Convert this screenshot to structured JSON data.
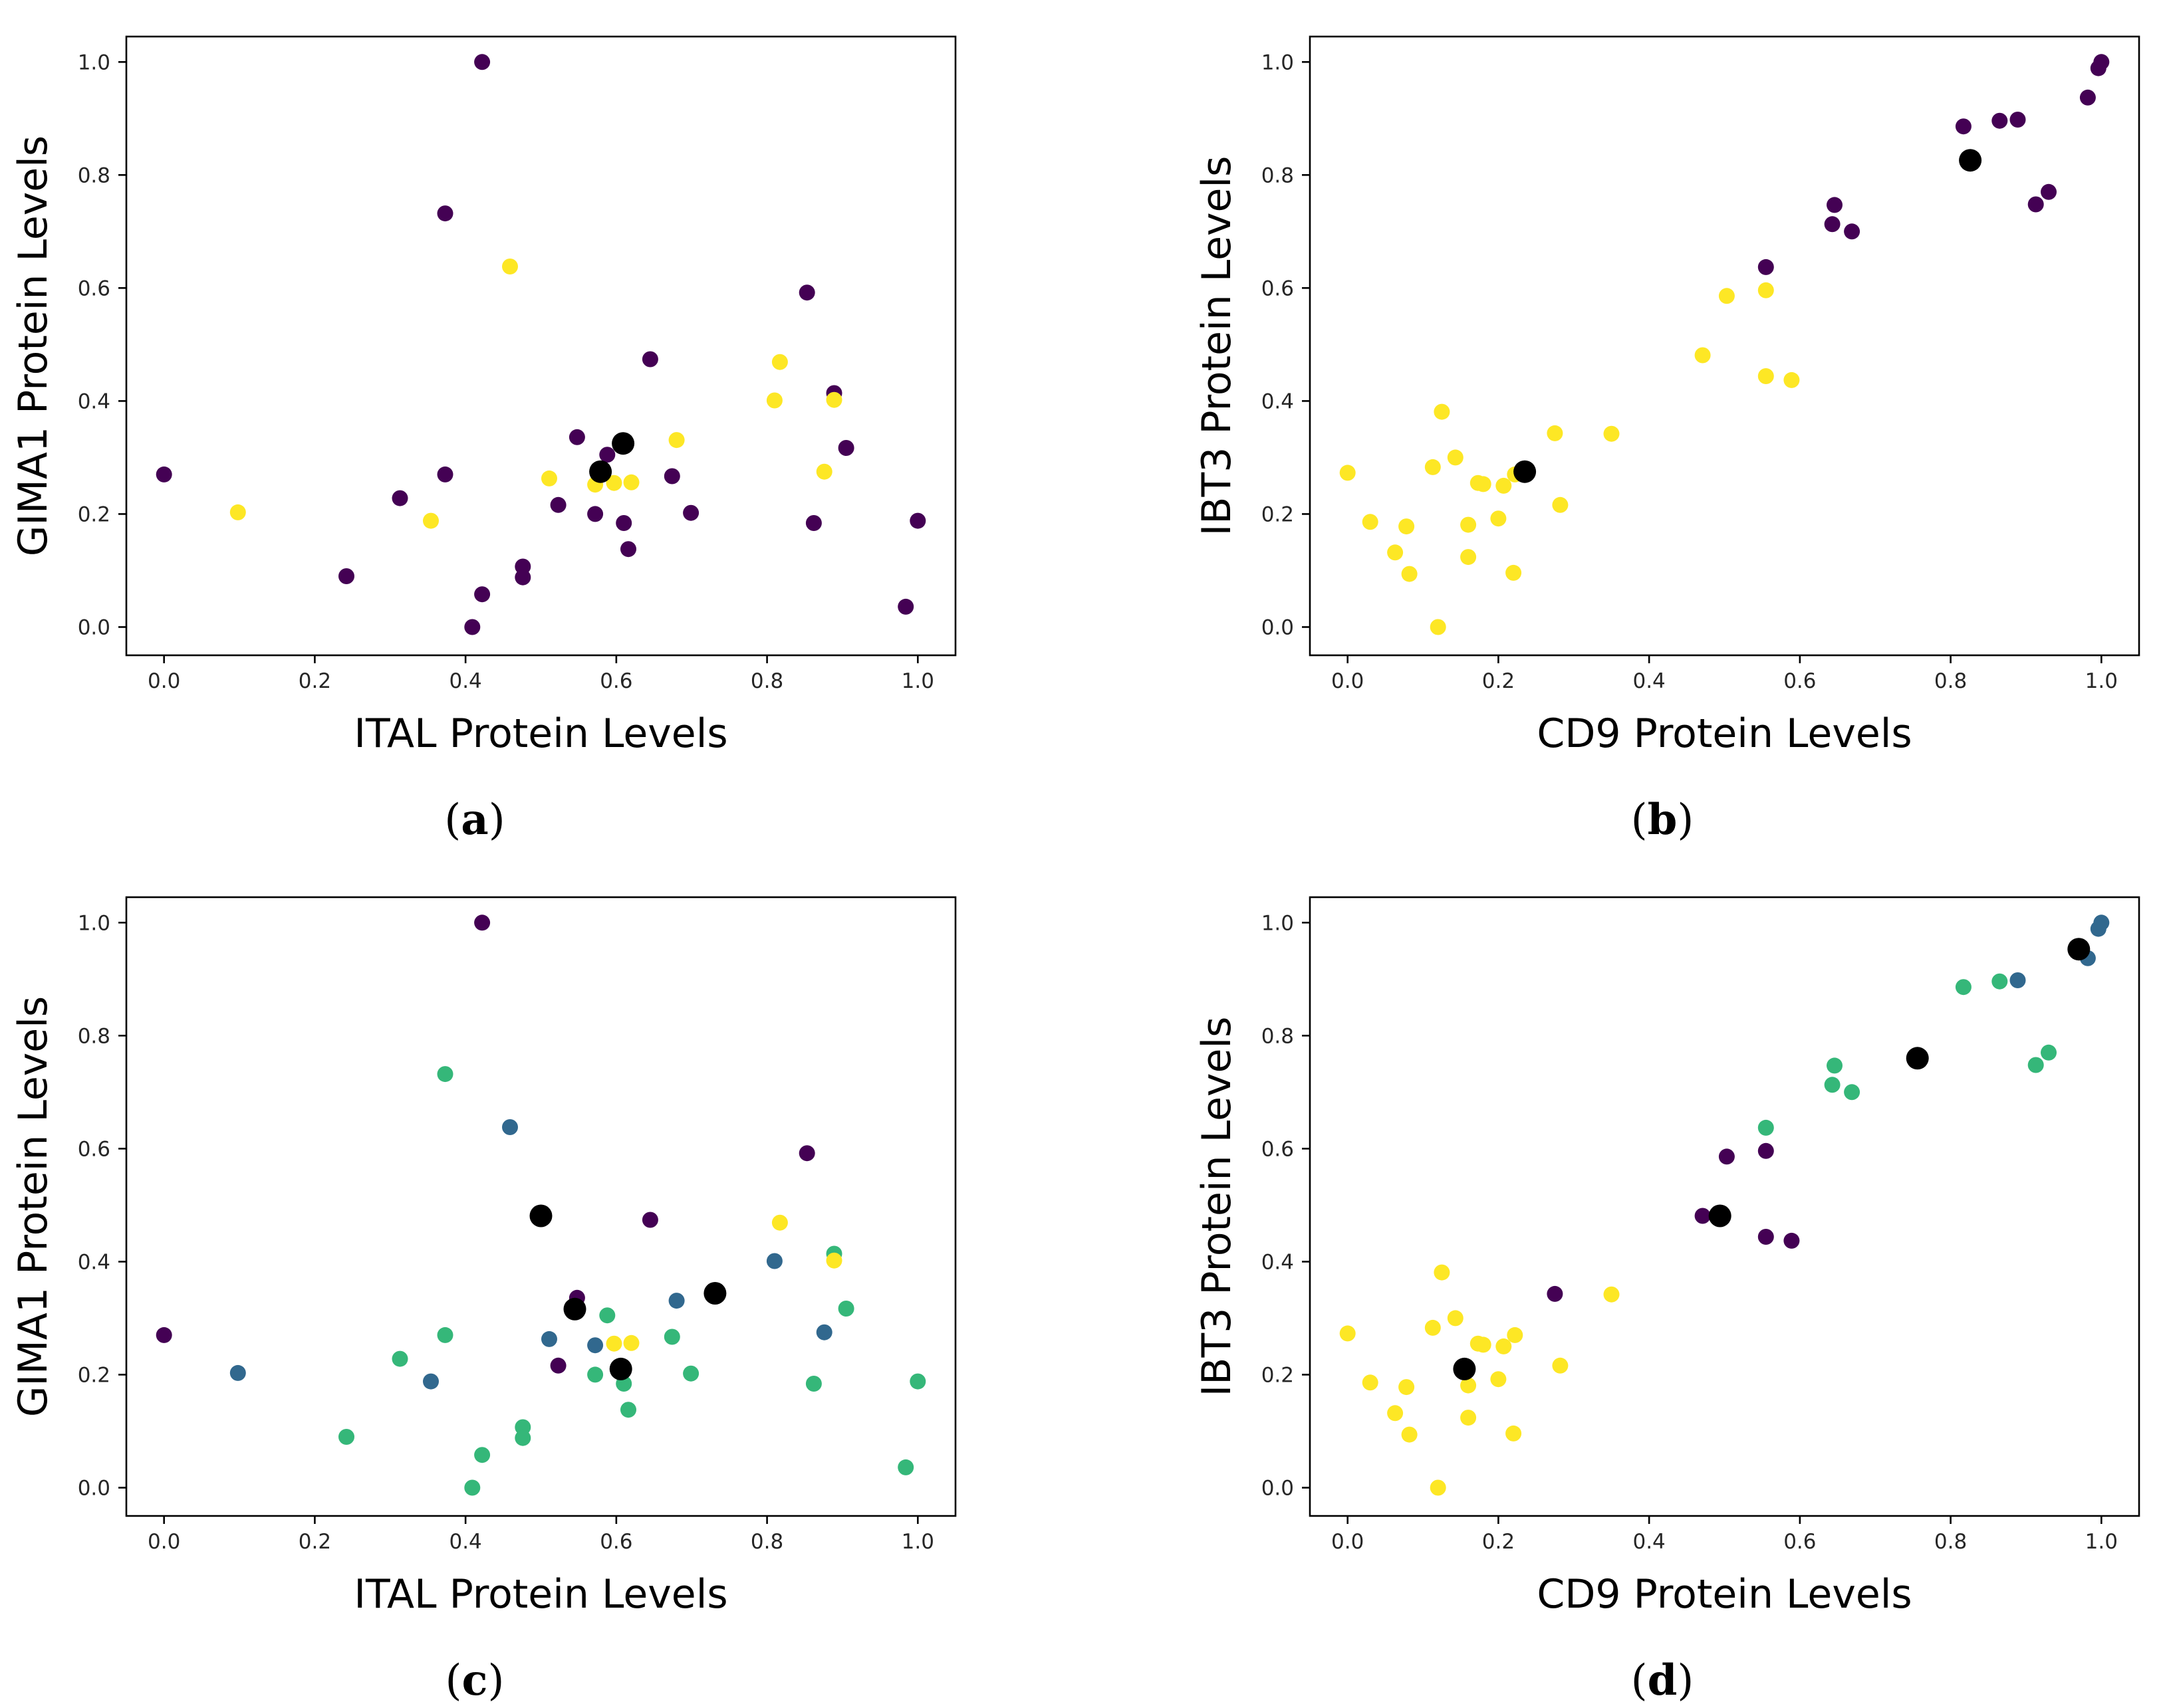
{
  "colors": {
    "purple": "#440154",
    "blue": "#31688e",
    "green": "#35b779",
    "yellow": "#fde725",
    "centroid": "#000000"
  },
  "chart_data": [
    {
      "id": "a",
      "type": "scatter",
      "caption_letter": "a",
      "xlabel": "ITAL Protein Levels",
      "ylabel": "GIMA1 Protein Levels",
      "xlim": [
        -0.05,
        1.05
      ],
      "ylim": [
        -0.05,
        1.045
      ],
      "xticks": [
        "0.0",
        "0.2",
        "0.4",
        "0.6",
        "0.8",
        "1.0"
      ],
      "yticks": [
        "0.0",
        "0.2",
        "0.4",
        "0.6",
        "0.8",
        "1.0"
      ],
      "legend": "none",
      "grid": false,
      "points": [
        {
          "x": 0.0,
          "y": 0.27,
          "c": "purple"
        },
        {
          "x": 0.242,
          "y": 0.09,
          "c": "purple"
        },
        {
          "x": 0.313,
          "y": 0.228,
          "c": "purple"
        },
        {
          "x": 0.373,
          "y": 0.732,
          "c": "purple"
        },
        {
          "x": 0.373,
          "y": 0.27,
          "c": "purple"
        },
        {
          "x": 0.409,
          "y": 0.0,
          "c": "purple"
        },
        {
          "x": 0.422,
          "y": 1.0,
          "c": "purple"
        },
        {
          "x": 0.422,
          "y": 0.058,
          "c": "purple"
        },
        {
          "x": 0.476,
          "y": 0.107,
          "c": "purple"
        },
        {
          "x": 0.476,
          "y": 0.088,
          "c": "purple"
        },
        {
          "x": 0.523,
          "y": 0.216,
          "c": "purple"
        },
        {
          "x": 0.548,
          "y": 0.336,
          "c": "purple"
        },
        {
          "x": 0.572,
          "y": 0.2,
          "c": "purple"
        },
        {
          "x": 0.588,
          "y": 0.305,
          "c": "purple"
        },
        {
          "x": 0.61,
          "y": 0.184,
          "c": "purple"
        },
        {
          "x": 0.616,
          "y": 0.138,
          "c": "purple"
        },
        {
          "x": 0.645,
          "y": 0.474,
          "c": "purple"
        },
        {
          "x": 0.674,
          "y": 0.267,
          "c": "purple"
        },
        {
          "x": 0.699,
          "y": 0.202,
          "c": "purple"
        },
        {
          "x": 0.853,
          "y": 0.592,
          "c": "purple"
        },
        {
          "x": 0.862,
          "y": 0.184,
          "c": "purple"
        },
        {
          "x": 0.889,
          "y": 0.414,
          "c": "purple"
        },
        {
          "x": 0.905,
          "y": 0.317,
          "c": "purple"
        },
        {
          "x": 0.984,
          "y": 0.036,
          "c": "purple"
        },
        {
          "x": 1.0,
          "y": 0.188,
          "c": "purple"
        },
        {
          "x": 0.098,
          "y": 0.203,
          "c": "yellow"
        },
        {
          "x": 0.354,
          "y": 0.188,
          "c": "yellow"
        },
        {
          "x": 0.459,
          "y": 0.638,
          "c": "yellow"
        },
        {
          "x": 0.511,
          "y": 0.263,
          "c": "yellow"
        },
        {
          "x": 0.572,
          "y": 0.252,
          "c": "yellow"
        },
        {
          "x": 0.597,
          "y": 0.255,
          "c": "yellow"
        },
        {
          "x": 0.62,
          "y": 0.256,
          "c": "yellow"
        },
        {
          "x": 0.68,
          "y": 0.331,
          "c": "yellow"
        },
        {
          "x": 0.81,
          "y": 0.401,
          "c": "yellow"
        },
        {
          "x": 0.817,
          "y": 0.469,
          "c": "yellow"
        },
        {
          "x": 0.876,
          "y": 0.275,
          "c": "yellow"
        },
        {
          "x": 0.889,
          "y": 0.402,
          "c": "yellow"
        }
      ],
      "centroids": [
        {
          "x": 0.579,
          "y": 0.275
        },
        {
          "x": 0.609,
          "y": 0.325
        }
      ]
    },
    {
      "id": "b",
      "type": "scatter",
      "caption_letter": "b",
      "xlabel": "CD9 Protein Levels",
      "ylabel": "IBT3 Protein Levels",
      "xlim": [
        -0.05,
        1.05
      ],
      "ylim": [
        -0.05,
        1.045
      ],
      "xticks": [
        "0.0",
        "0.2",
        "0.4",
        "0.6",
        "0.8",
        "1.0"
      ],
      "yticks": [
        "0.0",
        "0.2",
        "0.4",
        "0.6",
        "0.8",
        "1.0"
      ],
      "legend": "none",
      "grid": false,
      "points": [
        {
          "x": 0.0,
          "y": 0.273,
          "c": "yellow"
        },
        {
          "x": 0.03,
          "y": 0.186,
          "c": "yellow"
        },
        {
          "x": 0.063,
          "y": 0.132,
          "c": "yellow"
        },
        {
          "x": 0.078,
          "y": 0.178,
          "c": "yellow"
        },
        {
          "x": 0.082,
          "y": 0.094,
          "c": "yellow"
        },
        {
          "x": 0.113,
          "y": 0.283,
          "c": "yellow"
        },
        {
          "x": 0.12,
          "y": 0.0,
          "c": "yellow"
        },
        {
          "x": 0.125,
          "y": 0.381,
          "c": "yellow"
        },
        {
          "x": 0.143,
          "y": 0.3,
          "c": "yellow"
        },
        {
          "x": 0.16,
          "y": 0.124,
          "c": "yellow"
        },
        {
          "x": 0.16,
          "y": 0.181,
          "c": "yellow"
        },
        {
          "x": 0.173,
          "y": 0.255,
          "c": "yellow"
        },
        {
          "x": 0.18,
          "y": 0.253,
          "c": "yellow"
        },
        {
          "x": 0.2,
          "y": 0.192,
          "c": "yellow"
        },
        {
          "x": 0.207,
          "y": 0.25,
          "c": "yellow"
        },
        {
          "x": 0.22,
          "y": 0.096,
          "c": "yellow"
        },
        {
          "x": 0.222,
          "y": 0.27,
          "c": "yellow"
        },
        {
          "x": 0.275,
          "y": 0.343,
          "c": "yellow"
        },
        {
          "x": 0.282,
          "y": 0.216,
          "c": "yellow"
        },
        {
          "x": 0.35,
          "y": 0.342,
          "c": "yellow"
        },
        {
          "x": 0.471,
          "y": 0.481,
          "c": "yellow"
        },
        {
          "x": 0.503,
          "y": 0.586,
          "c": "yellow"
        },
        {
          "x": 0.555,
          "y": 0.596,
          "c": "yellow"
        },
        {
          "x": 0.555,
          "y": 0.444,
          "c": "yellow"
        },
        {
          "x": 0.589,
          "y": 0.437,
          "c": "yellow"
        },
        {
          "x": 0.555,
          "y": 0.637,
          "c": "purple"
        },
        {
          "x": 0.643,
          "y": 0.713,
          "c": "purple"
        },
        {
          "x": 0.646,
          "y": 0.747,
          "c": "purple"
        },
        {
          "x": 0.669,
          "y": 0.7,
          "c": "purple"
        },
        {
          "x": 0.817,
          "y": 0.886,
          "c": "purple"
        },
        {
          "x": 0.865,
          "y": 0.896,
          "c": "purple"
        },
        {
          "x": 0.889,
          "y": 0.898,
          "c": "purple"
        },
        {
          "x": 0.913,
          "y": 0.748,
          "c": "purple"
        },
        {
          "x": 0.93,
          "y": 0.77,
          "c": "purple"
        },
        {
          "x": 0.982,
          "y": 0.937,
          "c": "purple"
        },
        {
          "x": 0.996,
          "y": 0.989,
          "c": "purple"
        },
        {
          "x": 1.0,
          "y": 1.0,
          "c": "purple"
        }
      ],
      "centroids": [
        {
          "x": 0.235,
          "y": 0.275
        },
        {
          "x": 0.826,
          "y": 0.826
        }
      ]
    },
    {
      "id": "c",
      "type": "scatter",
      "caption_letter": "c",
      "xlabel": "ITAL Protein Levels",
      "ylabel": "GIMA1 Protein Levels",
      "xlim": [
        -0.05,
        1.05
      ],
      "ylim": [
        -0.05,
        1.045
      ],
      "xticks": [
        "0.0",
        "0.2",
        "0.4",
        "0.6",
        "0.8",
        "1.0"
      ],
      "yticks": [
        "0.0",
        "0.2",
        "0.4",
        "0.6",
        "0.8",
        "1.0"
      ],
      "legend": "none",
      "grid": false,
      "points": [
        {
          "x": 0.0,
          "y": 0.27,
          "c": "purple"
        },
        {
          "x": 0.422,
          "y": 1.0,
          "c": "purple"
        },
        {
          "x": 0.523,
          "y": 0.216,
          "c": "purple"
        },
        {
          "x": 0.548,
          "y": 0.336,
          "c": "purple"
        },
        {
          "x": 0.645,
          "y": 0.474,
          "c": "purple"
        },
        {
          "x": 0.853,
          "y": 0.592,
          "c": "purple"
        },
        {
          "x": 0.098,
          "y": 0.203,
          "c": "blue"
        },
        {
          "x": 0.354,
          "y": 0.188,
          "c": "blue"
        },
        {
          "x": 0.459,
          "y": 0.638,
          "c": "blue"
        },
        {
          "x": 0.511,
          "y": 0.263,
          "c": "blue"
        },
        {
          "x": 0.572,
          "y": 0.252,
          "c": "blue"
        },
        {
          "x": 0.68,
          "y": 0.331,
          "c": "blue"
        },
        {
          "x": 0.81,
          "y": 0.401,
          "c": "blue"
        },
        {
          "x": 0.876,
          "y": 0.275,
          "c": "blue"
        },
        {
          "x": 0.242,
          "y": 0.09,
          "c": "green"
        },
        {
          "x": 0.313,
          "y": 0.228,
          "c": "green"
        },
        {
          "x": 0.373,
          "y": 0.732,
          "c": "green"
        },
        {
          "x": 0.373,
          "y": 0.27,
          "c": "green"
        },
        {
          "x": 0.409,
          "y": 0.0,
          "c": "green"
        },
        {
          "x": 0.422,
          "y": 0.058,
          "c": "green"
        },
        {
          "x": 0.476,
          "y": 0.107,
          "c": "green"
        },
        {
          "x": 0.476,
          "y": 0.088,
          "c": "green"
        },
        {
          "x": 0.572,
          "y": 0.2,
          "c": "green"
        },
        {
          "x": 0.588,
          "y": 0.305,
          "c": "green"
        },
        {
          "x": 0.61,
          "y": 0.184,
          "c": "green"
        },
        {
          "x": 0.616,
          "y": 0.138,
          "c": "green"
        },
        {
          "x": 0.674,
          "y": 0.267,
          "c": "green"
        },
        {
          "x": 0.699,
          "y": 0.202,
          "c": "green"
        },
        {
          "x": 0.862,
          "y": 0.184,
          "c": "green"
        },
        {
          "x": 0.889,
          "y": 0.414,
          "c": "green"
        },
        {
          "x": 0.905,
          "y": 0.317,
          "c": "green"
        },
        {
          "x": 0.984,
          "y": 0.036,
          "c": "green"
        },
        {
          "x": 1.0,
          "y": 0.188,
          "c": "green"
        },
        {
          "x": 0.597,
          "y": 0.255,
          "c": "yellow"
        },
        {
          "x": 0.62,
          "y": 0.256,
          "c": "yellow"
        },
        {
          "x": 0.817,
          "y": 0.469,
          "c": "yellow"
        },
        {
          "x": 0.889,
          "y": 0.402,
          "c": "yellow"
        }
      ],
      "centroids": [
        {
          "x": 0.5,
          "y": 0.481
        },
        {
          "x": 0.545,
          "y": 0.316
        },
        {
          "x": 0.606,
          "y": 0.21
        },
        {
          "x": 0.731,
          "y": 0.344
        }
      ]
    },
    {
      "id": "d",
      "type": "scatter",
      "caption_letter": "d",
      "xlabel": "CD9 Protein Levels",
      "ylabel": "IBT3 Protein Levels",
      "xlim": [
        -0.05,
        1.05
      ],
      "ylim": [
        -0.05,
        1.045
      ],
      "xticks": [
        "0.0",
        "0.2",
        "0.4",
        "0.6",
        "0.8",
        "1.0"
      ],
      "yticks": [
        "0.0",
        "0.2",
        "0.4",
        "0.6",
        "0.8",
        "1.0"
      ],
      "legend": "none",
      "grid": false,
      "points": [
        {
          "x": 0.0,
          "y": 0.273,
          "c": "yellow"
        },
        {
          "x": 0.03,
          "y": 0.186,
          "c": "yellow"
        },
        {
          "x": 0.063,
          "y": 0.132,
          "c": "yellow"
        },
        {
          "x": 0.078,
          "y": 0.178,
          "c": "yellow"
        },
        {
          "x": 0.082,
          "y": 0.094,
          "c": "yellow"
        },
        {
          "x": 0.113,
          "y": 0.283,
          "c": "yellow"
        },
        {
          "x": 0.12,
          "y": 0.0,
          "c": "yellow"
        },
        {
          "x": 0.125,
          "y": 0.381,
          "c": "yellow"
        },
        {
          "x": 0.143,
          "y": 0.3,
          "c": "yellow"
        },
        {
          "x": 0.16,
          "y": 0.124,
          "c": "yellow"
        },
        {
          "x": 0.16,
          "y": 0.181,
          "c": "yellow"
        },
        {
          "x": 0.173,
          "y": 0.255,
          "c": "yellow"
        },
        {
          "x": 0.18,
          "y": 0.253,
          "c": "yellow"
        },
        {
          "x": 0.2,
          "y": 0.192,
          "c": "yellow"
        },
        {
          "x": 0.207,
          "y": 0.25,
          "c": "yellow"
        },
        {
          "x": 0.22,
          "y": 0.096,
          "c": "yellow"
        },
        {
          "x": 0.222,
          "y": 0.27,
          "c": "yellow"
        },
        {
          "x": 0.282,
          "y": 0.216,
          "c": "yellow"
        },
        {
          "x": 0.35,
          "y": 0.342,
          "c": "yellow"
        },
        {
          "x": 0.275,
          "y": 0.343,
          "c": "purple"
        },
        {
          "x": 0.471,
          "y": 0.481,
          "c": "purple"
        },
        {
          "x": 0.503,
          "y": 0.586,
          "c": "purple"
        },
        {
          "x": 0.555,
          "y": 0.596,
          "c": "purple"
        },
        {
          "x": 0.555,
          "y": 0.444,
          "c": "purple"
        },
        {
          "x": 0.589,
          "y": 0.437,
          "c": "purple"
        },
        {
          "x": 0.555,
          "y": 0.637,
          "c": "green"
        },
        {
          "x": 0.643,
          "y": 0.713,
          "c": "green"
        },
        {
          "x": 0.646,
          "y": 0.747,
          "c": "green"
        },
        {
          "x": 0.669,
          "y": 0.7,
          "c": "green"
        },
        {
          "x": 0.817,
          "y": 0.886,
          "c": "green"
        },
        {
          "x": 0.865,
          "y": 0.896,
          "c": "green"
        },
        {
          "x": 0.913,
          "y": 0.748,
          "c": "green"
        },
        {
          "x": 0.93,
          "y": 0.77,
          "c": "green"
        },
        {
          "x": 0.889,
          "y": 0.898,
          "c": "blue"
        },
        {
          "x": 0.982,
          "y": 0.937,
          "c": "blue"
        },
        {
          "x": 0.996,
          "y": 0.989,
          "c": "blue"
        },
        {
          "x": 1.0,
          "y": 1.0,
          "c": "blue"
        }
      ],
      "centroids": [
        {
          "x": 0.155,
          "y": 0.21
        },
        {
          "x": 0.494,
          "y": 0.481
        },
        {
          "x": 0.756,
          "y": 0.76
        },
        {
          "x": 0.97,
          "y": 0.953
        }
      ]
    }
  ]
}
